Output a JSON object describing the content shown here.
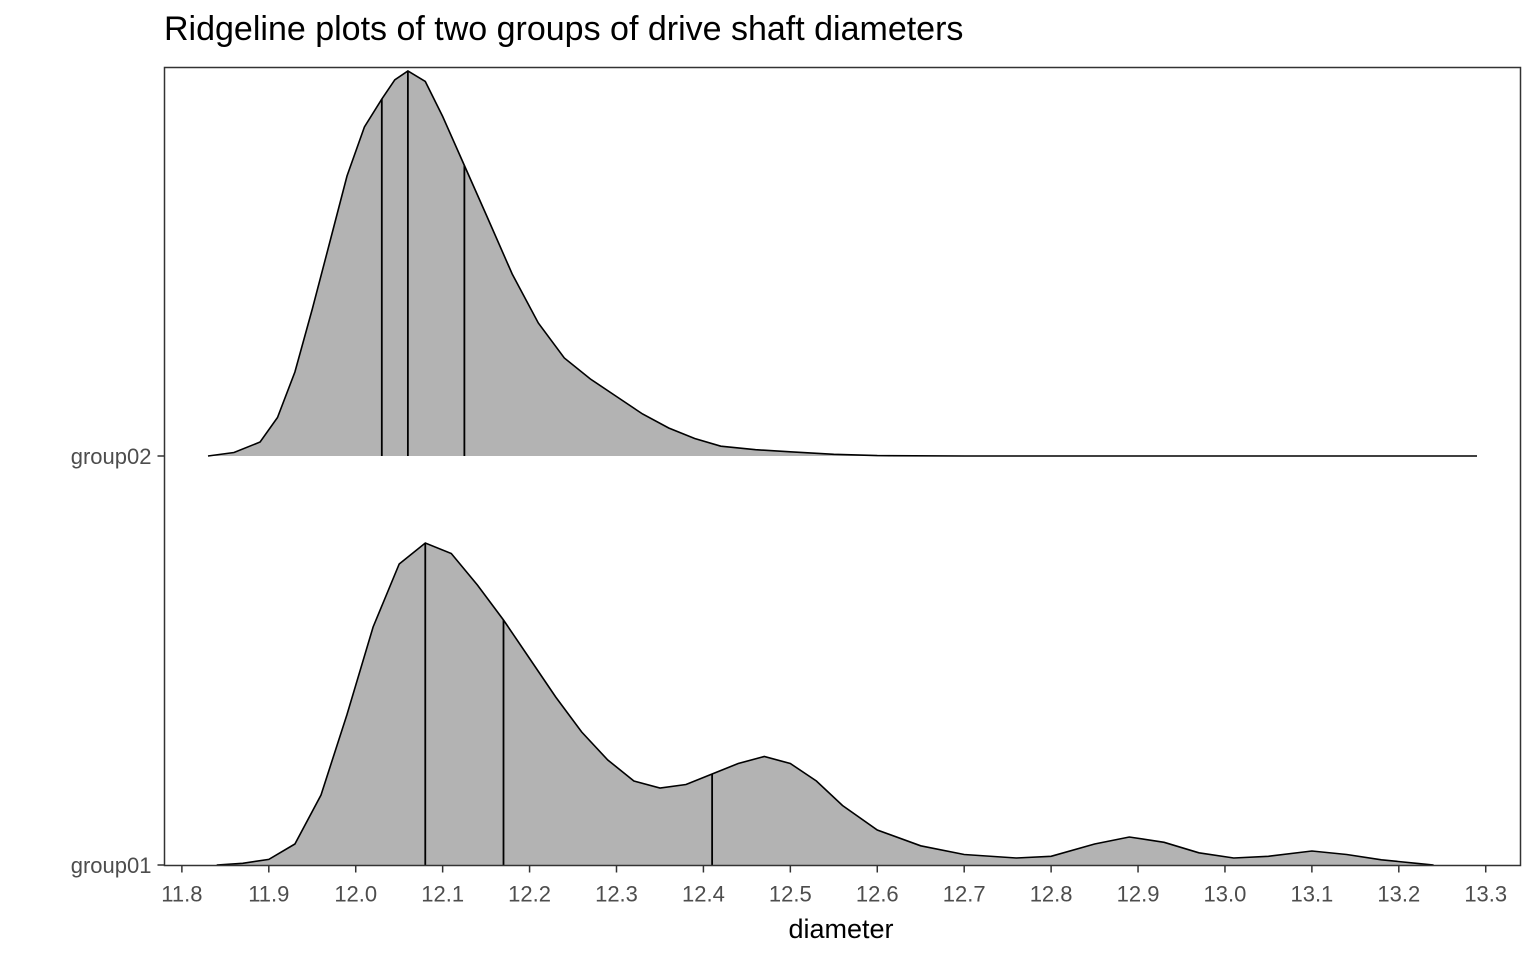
{
  "chart_data": {
    "type": "ridgeline",
    "title": "Ridgeline plots of two groups of drive shaft diameters",
    "xlabel": "diameter",
    "ylabel": "",
    "xlim": [
      11.78,
      13.34
    ],
    "x_ticks": [
      "11.8",
      "11.9",
      "12.0",
      "12.1",
      "12.2",
      "12.3",
      "12.4",
      "12.5",
      "12.6",
      "12.7",
      "12.8",
      "12.9",
      "13.0",
      "13.1",
      "13.2",
      "13.3"
    ],
    "grid": false,
    "fill_color": "#b3b3b3",
    "line_color": "#000000",
    "series": [
      {
        "name": "group01",
        "quantiles": [
          12.08,
          12.17,
          12.41
        ],
        "curve": [
          [
            11.84,
            0.0
          ],
          [
            11.87,
            0.005
          ],
          [
            11.9,
            0.016
          ],
          [
            11.93,
            0.06
          ],
          [
            11.96,
            0.2
          ],
          [
            11.99,
            0.43
          ],
          [
            12.02,
            0.68
          ],
          [
            12.05,
            0.86
          ],
          [
            12.08,
            0.92
          ],
          [
            12.11,
            0.89
          ],
          [
            12.14,
            0.8
          ],
          [
            12.17,
            0.7
          ],
          [
            12.2,
            0.59
          ],
          [
            12.23,
            0.48
          ],
          [
            12.26,
            0.38
          ],
          [
            12.29,
            0.3
          ],
          [
            12.32,
            0.24
          ],
          [
            12.35,
            0.22
          ],
          [
            12.38,
            0.23
          ],
          [
            12.41,
            0.26
          ],
          [
            12.44,
            0.29
          ],
          [
            12.47,
            0.31
          ],
          [
            12.5,
            0.29
          ],
          [
            12.53,
            0.24
          ],
          [
            12.56,
            0.17
          ],
          [
            12.6,
            0.1
          ],
          [
            12.65,
            0.055
          ],
          [
            12.7,
            0.03
          ],
          [
            12.76,
            0.02
          ],
          [
            12.8,
            0.025
          ],
          [
            12.85,
            0.06
          ],
          [
            12.89,
            0.08
          ],
          [
            12.93,
            0.065
          ],
          [
            12.97,
            0.035
          ],
          [
            13.01,
            0.02
          ],
          [
            13.05,
            0.025
          ],
          [
            13.1,
            0.04
          ],
          [
            13.14,
            0.03
          ],
          [
            13.18,
            0.015
          ],
          [
            13.22,
            0.005
          ],
          [
            13.24,
            0.0
          ]
        ]
      },
      {
        "name": "group02",
        "quantiles": [
          12.03,
          12.06,
          12.125
        ],
        "curve": [
          [
            11.83,
            0.0
          ],
          [
            11.86,
            0.01
          ],
          [
            11.89,
            0.04
          ],
          [
            11.91,
            0.11
          ],
          [
            11.93,
            0.24
          ],
          [
            11.95,
            0.42
          ],
          [
            11.97,
            0.61
          ],
          [
            11.99,
            0.8
          ],
          [
            12.01,
            0.94
          ],
          [
            12.03,
            1.02
          ],
          [
            12.045,
            1.075
          ],
          [
            12.06,
            1.1
          ],
          [
            12.08,
            1.07
          ],
          [
            12.1,
            0.97
          ],
          [
            12.125,
            0.83
          ],
          [
            12.15,
            0.69
          ],
          [
            12.18,
            0.52
          ],
          [
            12.21,
            0.38
          ],
          [
            12.24,
            0.28
          ],
          [
            12.27,
            0.22
          ],
          [
            12.3,
            0.17
          ],
          [
            12.33,
            0.12
          ],
          [
            12.36,
            0.08
          ],
          [
            12.39,
            0.05
          ],
          [
            12.42,
            0.028
          ],
          [
            12.46,
            0.018
          ],
          [
            12.5,
            0.012
          ],
          [
            12.55,
            0.005
          ],
          [
            12.6,
            0.001
          ],
          [
            12.7,
            0.0
          ],
          [
            13.29,
            0.0
          ]
        ]
      }
    ]
  }
}
